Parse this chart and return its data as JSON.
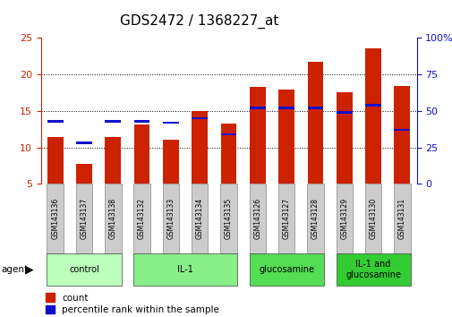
{
  "title": "GDS2472 / 1368227_at",
  "samples": [
    "GSM143136",
    "GSM143137",
    "GSM143138",
    "GSM143132",
    "GSM143133",
    "GSM143134",
    "GSM143135",
    "GSM143126",
    "GSM143127",
    "GSM143128",
    "GSM143129",
    "GSM143130",
    "GSM143131"
  ],
  "count_values": [
    11.4,
    7.8,
    11.4,
    13.1,
    11.0,
    15.0,
    13.3,
    18.3,
    17.9,
    21.8,
    17.6,
    23.6,
    18.4
  ],
  "percentile_values": [
    43,
    28,
    43,
    43,
    42,
    45,
    34,
    52,
    52,
    52,
    49,
    54,
    37
  ],
  "ylim_left": [
    5,
    25
  ],
  "ylim_right": [
    0,
    100
  ],
  "yticks_left": [
    5,
    10,
    15,
    20,
    25
  ],
  "yticks_right": [
    0,
    25,
    50,
    75,
    100
  ],
  "bar_color_red": "#cc2200",
  "bar_color_blue": "#1111cc",
  "bar_width": 0.55,
  "groups": [
    {
      "label": "control",
      "start": 0,
      "end": 3,
      "color": "#bbffbb"
    },
    {
      "label": "IL-1",
      "start": 3,
      "end": 7,
      "color": "#88ee88"
    },
    {
      "label": "glucosamine",
      "start": 7,
      "end": 10,
      "color": "#55dd55"
    },
    {
      "label": "IL-1 and\nglucosamine",
      "start": 10,
      "end": 13,
      "color": "#33cc33"
    }
  ],
  "agent_label": "agent",
  "legend_count": "count",
  "legend_percentile": "percentile rank within the sample",
  "tick_bg_color": "#cccccc",
  "title_fontsize": 11,
  "axis_label_color_left": "#cc2200",
  "axis_label_color_right": "#1111cc",
  "grid_yticks": [
    10,
    15,
    20
  ]
}
